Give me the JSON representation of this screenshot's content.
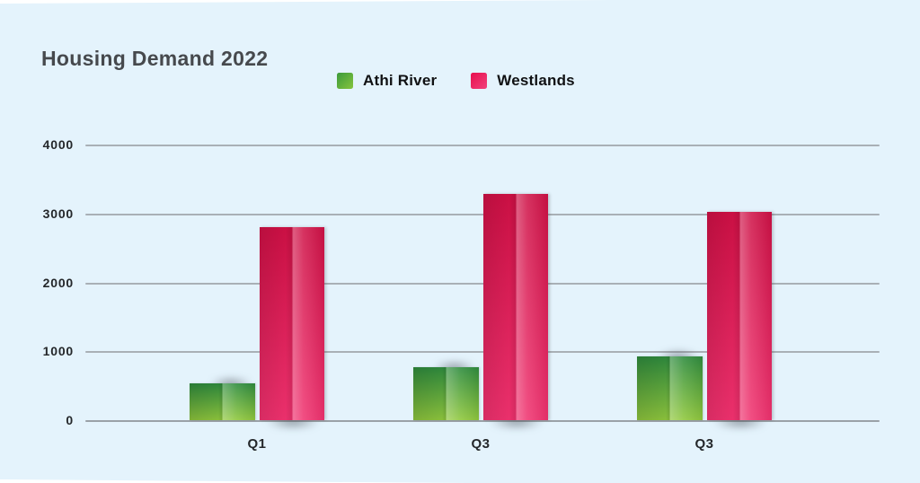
{
  "page": {
    "background": "#ffffff",
    "card_background": "#e4f3fc",
    "gridline_color": "#a9b0b6",
    "baseline_color": "#9aa1a7",
    "title_color": "#46494d",
    "tick_label_color": "#24272a"
  },
  "header": {
    "title": "Housing Demand 2022"
  },
  "legend": {
    "items": [
      {
        "label": "Athi River",
        "swatch_gradient": [
          "#3c9a3c",
          "#85c43d"
        ]
      },
      {
        "label": "Westlands",
        "swatch_gradient": [
          "#e80f4e",
          "#f1427c"
        ]
      }
    ]
  },
  "chart_data": {
    "type": "bar",
    "title": "Housing Demand 2022",
    "categories": [
      "Q1",
      "Q3",
      "Q3"
    ],
    "series": [
      {
        "name": "Athi River",
        "values": [
          530,
          770,
          920
        ],
        "gradient_top": "#2f8c3e",
        "gradient_bottom": "#90c83e"
      },
      {
        "name": "Westlands",
        "values": [
          2800,
          3280,
          3020
        ],
        "gradient_top": "#ce1045",
        "gradient_bottom": "#ef316e"
      }
    ],
    "ylabel": "",
    "xlabel": "",
    "ylim": [
      0,
      4000
    ],
    "y_ticks": [
      4000,
      3000,
      2000,
      1000,
      0
    ],
    "grid": "horizontal",
    "legend_position": "top-center"
  }
}
